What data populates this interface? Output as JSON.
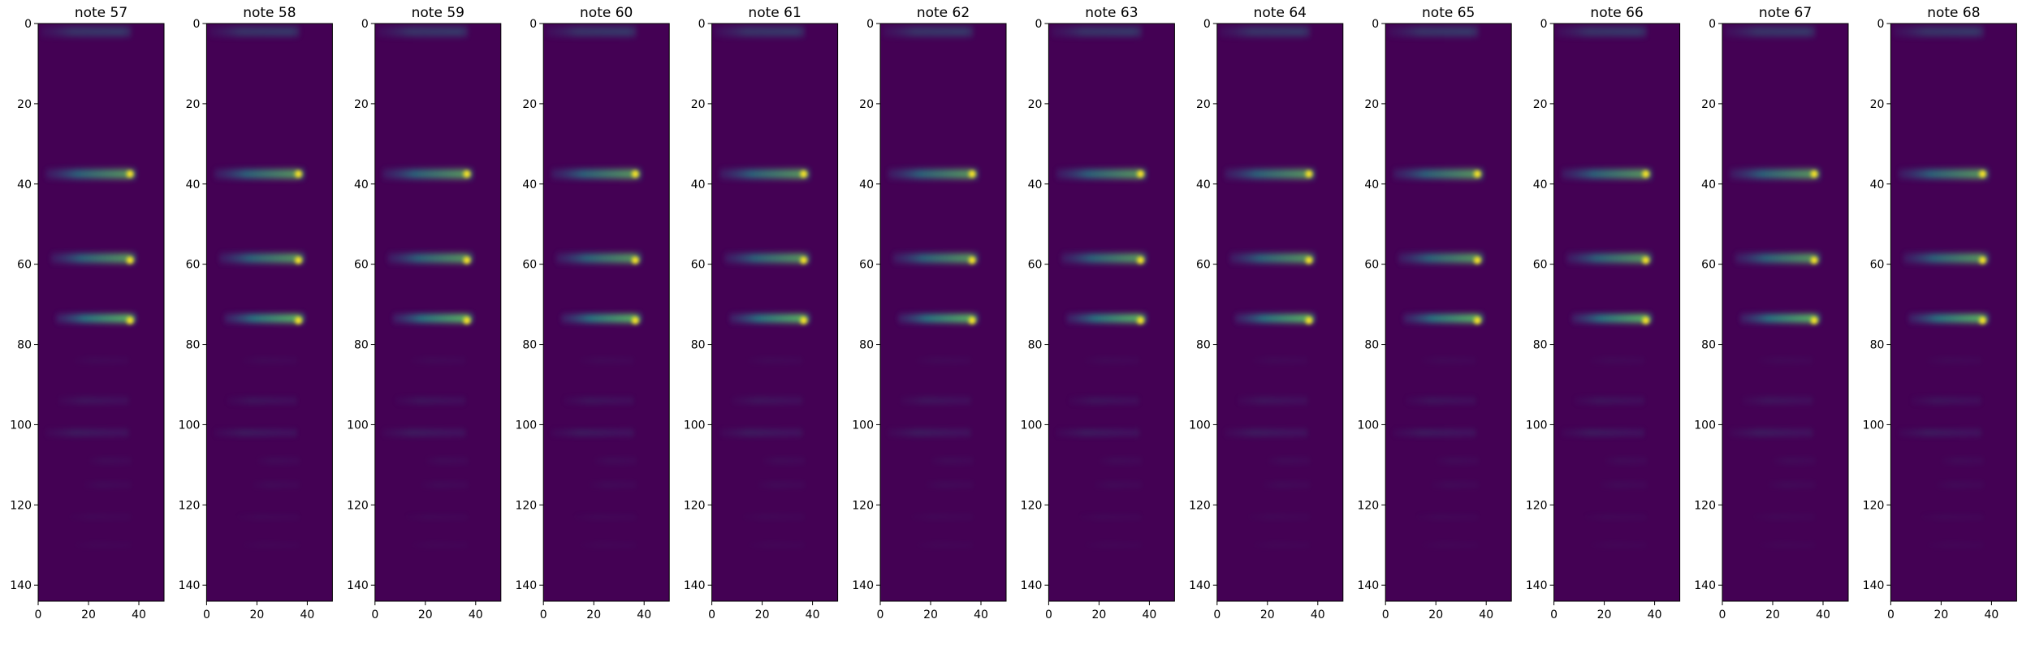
{
  "chart_data": {
    "type": "heatmap",
    "colormap": "viridis",
    "xlim": [
      0,
      50
    ],
    "ylim": [
      144,
      0
    ],
    "xticks": [
      0,
      20,
      40
    ],
    "yticks": [
      0,
      20,
      40,
      60,
      80,
      100,
      120,
      140
    ],
    "features": [
      {
        "y": 2,
        "h": 2.5,
        "x0": 1,
        "x1": 37,
        "amp": 0.25
      },
      {
        "y": 37.5,
        "h": 2.3,
        "x0": 3,
        "x1": 39,
        "amp": 0.5
      },
      {
        "y": 58.5,
        "h": 2.3,
        "x0": 5,
        "x1": 39,
        "amp": 0.5
      },
      {
        "y": 73.5,
        "h": 2.0,
        "x0": 7,
        "x1": 39,
        "amp": 0.62
      },
      {
        "y": 84,
        "h": 1.3,
        "x0": 14,
        "x1": 36,
        "amp": 0.06
      },
      {
        "y": 94,
        "h": 1.5,
        "x0": 8,
        "x1": 36,
        "amp": 0.13
      },
      {
        "y": 102,
        "h": 1.5,
        "x0": 3,
        "x1": 36,
        "amp": 0.17
      },
      {
        "y": 109,
        "h": 1.2,
        "x0": 20,
        "x1": 37,
        "amp": 0.08
      },
      {
        "y": 115,
        "h": 1.2,
        "x0": 18,
        "x1": 37,
        "amp": 0.07
      },
      {
        "y": 123,
        "h": 1.2,
        "x0": 12,
        "x1": 37,
        "amp": 0.05
      },
      {
        "y": 130,
        "h": 1.2,
        "x0": 14,
        "x1": 37,
        "amp": 0.04
      }
    ],
    "hotspots": [
      {
        "x": 36.5,
        "y": 37.5
      },
      {
        "x": 36.5,
        "y": 59
      },
      {
        "x": 36.5,
        "y": 74
      }
    ],
    "panels": [
      {
        "title": "note 57"
      },
      {
        "title": "note 58"
      },
      {
        "title": "note 59"
      },
      {
        "title": "note 60"
      },
      {
        "title": "note 61"
      },
      {
        "title": "note 62"
      },
      {
        "title": "note 63"
      },
      {
        "title": "note 64"
      },
      {
        "title": "note 65"
      },
      {
        "title": "note 66"
      },
      {
        "title": "note 67"
      },
      {
        "title": "note 68"
      }
    ]
  },
  "colors": {
    "background": "#440154",
    "low": "#3b528b",
    "mid": "#21918c",
    "high": "#5ec962",
    "peak": "#fde725"
  }
}
